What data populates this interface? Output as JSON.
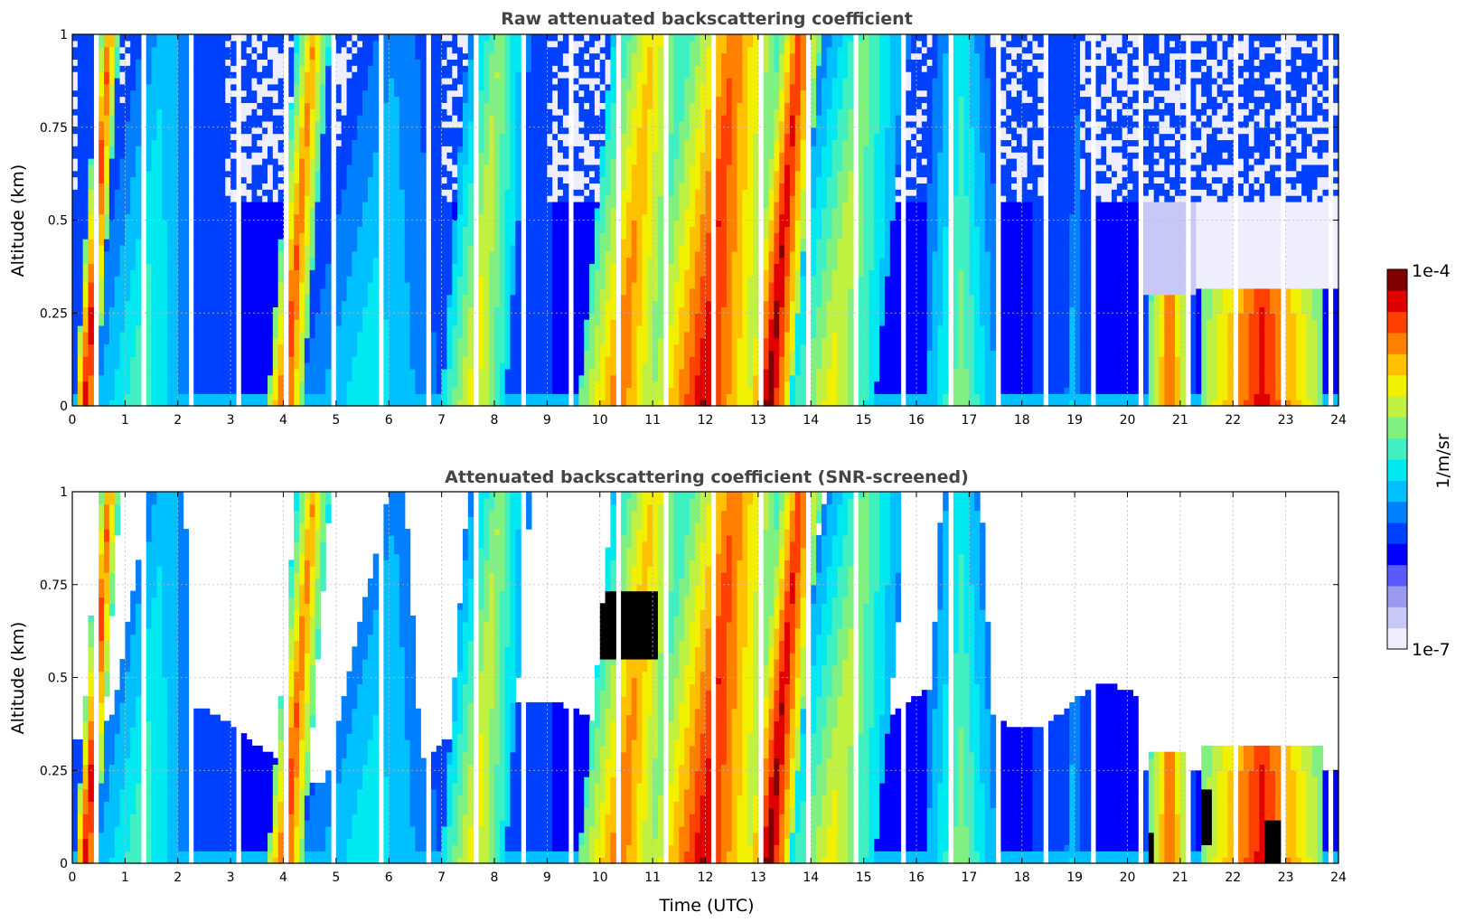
{
  "chart_data": [
    {
      "type": "heatmap",
      "title": "Raw attenuated backscattering coefficient",
      "xlabel": "",
      "ylabel": "Altitude (km)",
      "xlim": [
        0,
        24
      ],
      "ylim": [
        0,
        1
      ],
      "xticks": [
        "0",
        "1",
        "2",
        "3",
        "4",
        "5",
        "6",
        "7",
        "8",
        "9",
        "10",
        "11",
        "12",
        "13",
        "14",
        "15",
        "16",
        "17",
        "18",
        "19",
        "20",
        "21",
        "22",
        "23",
        "24"
      ],
      "yticks": [
        "0",
        "0.25",
        "0.5",
        "0.75",
        "1"
      ],
      "grid": true,
      "screened": false
    },
    {
      "type": "heatmap",
      "title": "Attenuated backscattering coefficient (SNR-screened)",
      "xlabel": "Time (UTC)",
      "ylabel": "Altitude (km)",
      "xlim": [
        0,
        24
      ],
      "ylim": [
        0,
        1
      ],
      "xticks": [
        "0",
        "1",
        "2",
        "3",
        "4",
        "5",
        "6",
        "7",
        "8",
        "9",
        "10",
        "11",
        "12",
        "13",
        "14",
        "15",
        "16",
        "17",
        "18",
        "19",
        "20",
        "21",
        "22",
        "23",
        "24"
      ],
      "yticks": [
        "0",
        "0.25",
        "0.5",
        "0.75",
        "1"
      ],
      "grid": true,
      "screened": true
    }
  ],
  "colorbar": {
    "label": "1/m/sr",
    "max_label": "1e-4",
    "min_label": "1e-7",
    "colors": [
      "#eeeeff",
      "#c8c8f8",
      "#9a9af0",
      "#5a5aff",
      "#0000ff",
      "#0040ff",
      "#0080ff",
      "#00c0ff",
      "#00e8f0",
      "#40f0c0",
      "#80f080",
      "#c0f040",
      "#f0f000",
      "#ffc000",
      "#ff8000",
      "#ff4000",
      "#e00000",
      "#800000"
    ]
  },
  "field": {
    "profiles": [
      {
        "t0": 0.05,
        "t1": 0.45,
        "slope": -0.45,
        "strength": 0.95
      },
      {
        "t0": 0.3,
        "t1": 2.2,
        "slope": -0.55,
        "strength": 0.55
      },
      {
        "t0": 2.9,
        "t1": 3.3,
        "slope": -0.1,
        "strength": 0.35
      },
      {
        "t0": 3.7,
        "t1": 4.35,
        "slope": -0.55,
        "strength": 0.9
      },
      {
        "t0": 4.2,
        "t1": 7.0,
        "slope": -0.55,
        "strength": 0.5
      },
      {
        "t0": 7.0,
        "t1": 8.2,
        "slope": -0.5,
        "strength": 0.72
      },
      {
        "t0": 9.6,
        "t1": 11.1,
        "slope": -0.65,
        "strength": 0.85
      },
      {
        "t0": 11.0,
        "t1": 12.9,
        "slope": -0.6,
        "strength": 0.95
      },
      {
        "t0": 12.8,
        "t1": 13.6,
        "slope": -0.6,
        "strength": 1.0
      },
      {
        "t0": 13.5,
        "t1": 15.2,
        "slope": -0.7,
        "strength": 0.7
      },
      {
        "t0": 16.2,
        "t1": 17.5,
        "slope": 0.0,
        "strength": 0.6
      },
      {
        "t0": 18.8,
        "t1": 19.1,
        "slope": -0.1,
        "strength": 0.45
      },
      {
        "t0": 20.4,
        "t1": 21.2,
        "slope": 0.0,
        "strength": 0.85
      },
      {
        "t0": 21.4,
        "t1": 23.7,
        "slope": 0.0,
        "strength": 0.92
      }
    ],
    "black_blobs": [
      {
        "t0": 9.6,
        "t1": 11.1,
        "z0": 0.55,
        "z1": 0.73
      },
      {
        "t0": 20.4,
        "t1": 20.5,
        "z0": 0.0,
        "z1": 0.08
      },
      {
        "t0": 21.4,
        "t1": 21.6,
        "z0": 0.05,
        "z1": 0.2
      },
      {
        "t0": 22.6,
        "t1": 23.0,
        "z0": 0.0,
        "z1": 0.12
      }
    ]
  }
}
